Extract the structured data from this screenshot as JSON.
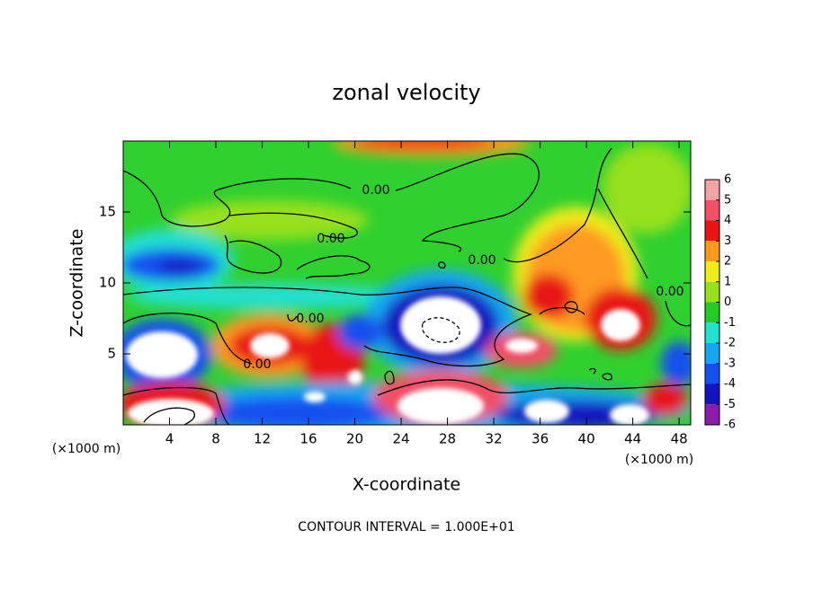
{
  "chart_data": {
    "type": "contour",
    "title": "zonal velocity",
    "x_label": "X-coordinate",
    "y_label": "Z-coordinate",
    "x_unit_label": "(×1000 m)",
    "y_unit_label": "(×1000 m)",
    "footnote": "CONTOUR INTERVAL = 1.000E+01",
    "xlim": [
      0,
      49
    ],
    "ylim": [
      0,
      20
    ],
    "xticks": [
      4,
      8,
      12,
      16,
      20,
      24,
      28,
      32,
      36,
      40,
      44,
      48
    ],
    "yticks": [
      5,
      10,
      15
    ],
    "contour_labels": [
      "0.00",
      "0.00",
      "0.00",
      "0.00",
      "0.00",
      "0.00"
    ],
    "colorbar": {
      "ticks": [
        6,
        5,
        4,
        3,
        2,
        1,
        0,
        -1,
        -2,
        -3,
        -4,
        -5,
        -6
      ],
      "colors": [
        "#f4a4a4",
        "#f25068",
        "#e81414",
        "#ff9a20",
        "#ecec1c",
        "#96e01e",
        "#22cc22",
        "#20e0d0",
        "#14a8f0",
        "#1450f0",
        "#1414c0",
        "#8c1ca8"
      ]
    }
  }
}
